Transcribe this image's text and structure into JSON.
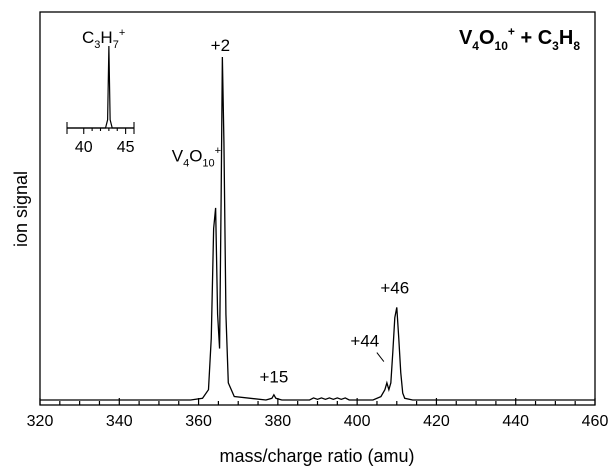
{
  "chart_data": {
    "type": "line",
    "title": "",
    "xlabel": "mass/charge ratio (amu)",
    "ylabel": "ion signal",
    "xlim": [
      320,
      460
    ],
    "ylim": [
      0,
      100
    ],
    "x_ticks": [
      "320",
      "340",
      "360",
      "380",
      "400",
      "420",
      "440",
      "460"
    ],
    "grid": false,
    "reaction_label": {
      "parts": [
        {
          "t": "V",
          "style": "n"
        },
        {
          "t": "4",
          "style": "sub"
        },
        {
          "t": "O",
          "style": "n"
        },
        {
          "t": "10",
          "style": "sub"
        },
        {
          "t": "+",
          "style": "sup"
        },
        {
          "t": " + C",
          "style": "n"
        },
        {
          "t": "3",
          "style": "sub"
        },
        {
          "t": "H",
          "style": "n"
        },
        {
          "t": "8",
          "style": "sub"
        }
      ]
    },
    "annotations": [
      {
        "text": "+2",
        "x": 366,
        "y": 100
      },
      {
        "parts": [
          {
            "t": "V",
            "style": "n"
          },
          {
            "t": "4",
            "style": "sub"
          },
          {
            "t": "O",
            "style": "n"
          },
          {
            "t": "10",
            "style": "sub"
          },
          {
            "t": "+",
            "style": "sup"
          }
        ],
        "x": 364,
        "y": 62
      },
      {
        "text": "+15",
        "x": 379,
        "y": 3
      },
      {
        "text": "+44",
        "x": 408,
        "y": 8
      },
      {
        "text": "+46",
        "x": 410,
        "y": 27
      }
    ],
    "series": [
      {
        "x": [
          320,
          358,
          361,
          362.5,
          363.2,
          363.8,
          364.3,
          364.8,
          365.3,
          365.7,
          366.0,
          366.4,
          366.9,
          367.5,
          369,
          377,
          378.5,
          379,
          379.5,
          381,
          388,
          389,
          390,
          391,
          392,
          393,
          394,
          395,
          396,
          397,
          398,
          404,
          406,
          407,
          407.5,
          408,
          408.5,
          409,
          409.5,
          410,
          410.5,
          411,
          411.5,
          412,
          414,
          460
        ],
        "y": [
          0,
          0,
          0.5,
          3,
          18,
          50,
          56,
          25,
          15,
          60,
          100,
          75,
          25,
          5,
          1,
          0,
          0.5,
          1.5,
          0.5,
          0,
          0,
          0.6,
          0.2,
          0.6,
          0.2,
          0.6,
          0.2,
          0.6,
          0.2,
          0.6,
          0,
          0,
          1,
          3,
          5,
          3,
          5,
          14,
          24,
          27,
          18,
          8,
          2,
          0.5,
          0,
          0
        ]
      }
    ],
    "inset": {
      "label_parts": [
        {
          "t": "C",
          "style": "n"
        },
        {
          "t": "3",
          "style": "sub"
        },
        {
          "t": "H",
          "style": "n"
        },
        {
          "t": "7",
          "style": "sub"
        },
        {
          "t": "+",
          "style": "sup"
        }
      ],
      "xlim": [
        38,
        46
      ],
      "ticks": [
        "40",
        "45"
      ],
      "series": {
        "x": [
          38,
          42.6,
          42.85,
          43,
          43.15,
          43.4,
          46
        ],
        "y": [
          0,
          0,
          10,
          100,
          10,
          0,
          0
        ]
      }
    }
  }
}
